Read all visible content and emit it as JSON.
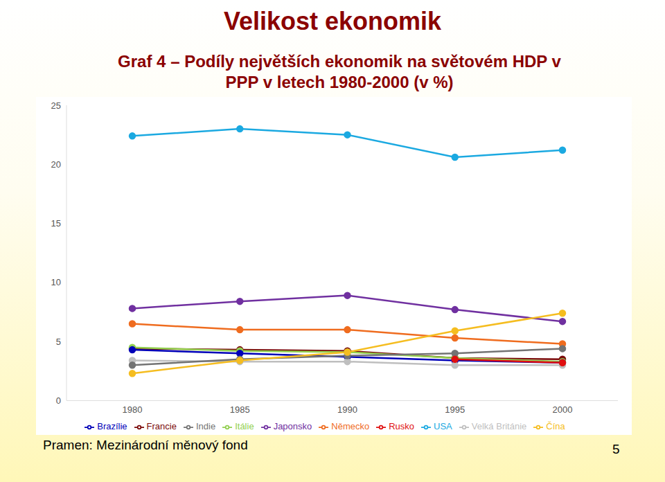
{
  "chart_data": {
    "type": "line",
    "title": "Velikost ekonomik",
    "subtitle": "Graf 4 – Podíly největších ekonomik na světovém HDP v PPP v letech 1980-2000 (v %)",
    "source": "Pramen: Mezinárodní měnový fond",
    "page": "5",
    "categories": [
      "1980",
      "1985",
      "1990",
      "1995",
      "2000"
    ],
    "ylim": [
      0,
      25
    ],
    "yticks": [
      0,
      5,
      10,
      15,
      20,
      25
    ],
    "grid": false,
    "legend": "bottom",
    "marker": "circle",
    "series": [
      {
        "name": "USA",
        "color": "#1ba9e1",
        "values": [
          22.4,
          23.0,
          22.5,
          20.6,
          21.2
        ]
      },
      {
        "name": "Japonsko",
        "color": "#7030a0",
        "values": [
          7.8,
          8.4,
          8.9,
          7.7,
          6.7
        ]
      },
      {
        "name": "Německo",
        "color": "#ef6c1f",
        "values": [
          6.5,
          6.0,
          6.0,
          5.3,
          4.8
        ]
      },
      {
        "name": "Francie",
        "color": "#7b0a0a",
        "values": [
          4.4,
          4.3,
          4.2,
          3.6,
          3.5
        ]
      },
      {
        "name": "Itálie",
        "color": "#92d050",
        "values": [
          4.5,
          4.2,
          4.1,
          3.6,
          3.3
        ]
      },
      {
        "name": "Brazílie",
        "color": "#0000b8",
        "values": [
          4.3,
          4.0,
          3.7,
          3.4,
          3.2
        ]
      },
      {
        "name": "Velká Británie",
        "color": "#bfbfbf",
        "values": [
          3.4,
          3.3,
          3.3,
          3.0,
          3.0
        ]
      },
      {
        "name": "Indie",
        "color": "#737373",
        "values": [
          3.0,
          3.5,
          3.8,
          4.0,
          4.4
        ]
      },
      {
        "name": "Čína",
        "color": "#f5bd20",
        "values": [
          2.3,
          3.4,
          4.1,
          5.9,
          7.4
        ]
      },
      {
        "name": "Rusko",
        "color": "#e01010",
        "values": [
          null,
          null,
          null,
          3.5,
          3.2
        ]
      }
    ]
  }
}
